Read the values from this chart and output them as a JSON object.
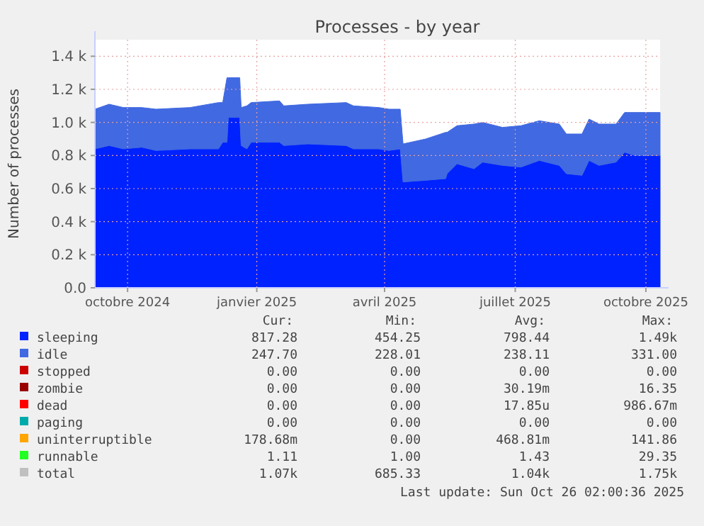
{
  "chart_data": {
    "type": "area",
    "stacked": true,
    "title": "Processes - by year",
    "ylabel": "Number of processes",
    "legend": "bottom",
    "grid": true,
    "x": [
      "2024-09-23",
      "2024-10-03",
      "2024-10-13",
      "2024-10-26",
      "2024-11-05",
      "2024-11-29",
      "2024-12-19",
      "2024-12-22",
      "2024-12-25",
      "2024-12-26",
      "2025-01-03",
      "2025-01-04",
      "2025-01-08",
      "2025-01-11",
      "2025-01-31",
      "2025-02-03",
      "2025-02-20",
      "2025-03-19",
      "2025-03-24",
      "2025-04-11",
      "2025-04-18",
      "2025-04-26",
      "2025-04-28",
      "2025-05-14",
      "2025-05-28",
      "2025-05-29",
      "2025-06-05",
      "2025-06-17",
      "2025-06-23",
      "2025-07-07",
      "2025-07-20",
      "2025-08-02",
      "2025-08-16",
      "2025-08-21",
      "2025-09-01",
      "2025-09-06",
      "2025-09-13",
      "2025-09-25",
      "2025-10-01",
      "2025-10-08",
      "2025-10-26"
    ],
    "xlim": [
      "2024-09-23",
      "2025-10-26"
    ],
    "xticks": [
      {
        "value": "2024-10-16",
        "label": "octobre 2024"
      },
      {
        "value": "2025-01-15",
        "label": "janvier 2025"
      },
      {
        "value": "2025-04-15",
        "label": "avril 2025"
      },
      {
        "value": "2025-07-16",
        "label": "juillet 2025"
      },
      {
        "value": "2025-10-16",
        "label": "octobre 2025"
      }
    ],
    "ylim": [
      0,
      1500
    ],
    "yticks": [
      {
        "value": 0,
        "label": "0.0"
      },
      {
        "value": 200,
        "label": "0.2 k"
      },
      {
        "value": 400,
        "label": "0.4 k"
      },
      {
        "value": 600,
        "label": "0.6 k"
      },
      {
        "value": 800,
        "label": "0.8 k"
      },
      {
        "value": 1000,
        "label": "1.0 k"
      },
      {
        "value": 1200,
        "label": "1.2 k"
      },
      {
        "value": 1400,
        "label": "1.4 k"
      }
    ],
    "series": [
      {
        "name": "sleeping",
        "color": "#0022ff",
        "values": [
          840,
          860,
          840,
          850,
          830,
          840,
          840,
          880,
          880,
          1030,
          1030,
          860,
          840,
          880,
          880,
          860,
          870,
          860,
          840,
          840,
          830,
          840,
          640,
          650,
          660,
          690,
          750,
          720,
          760,
          740,
          730,
          770,
          740,
          690,
          680,
          770,
          740,
          760,
          820,
          800,
          800
        ]
      },
      {
        "name": "idle",
        "color": "#4169e1",
        "values": [
          240,
          250,
          250,
          240,
          250,
          250,
          280,
          240,
          390,
          240,
          240,
          230,
          260,
          240,
          250,
          240,
          240,
          260,
          260,
          250,
          250,
          240,
          230,
          250,
          280,
          250,
          230,
          270,
          240,
          230,
          250,
          240,
          250,
          240,
          250,
          250,
          250,
          230,
          240,
          260,
          260
        ]
      },
      {
        "name": "stopped",
        "color": "#cc0000",
        "values": [
          null,
          null,
          null,
          null,
          null,
          null,
          null,
          null,
          null,
          null,
          null,
          null,
          null,
          null,
          null,
          null,
          null,
          null,
          null,
          null,
          null,
          null,
          null,
          null,
          null,
          null,
          null,
          null,
          null,
          null,
          null,
          null,
          null,
          null,
          null,
          null,
          null,
          null,
          null,
          null,
          null
        ]
      },
      {
        "name": "zombie",
        "color": "#990000",
        "values": [
          null,
          null,
          null,
          null,
          null,
          null,
          null,
          null,
          null,
          null,
          null,
          null,
          null,
          null,
          null,
          null,
          null,
          null,
          null,
          null,
          null,
          null,
          null,
          null,
          null,
          null,
          null,
          null,
          null,
          null,
          null,
          null,
          null,
          null,
          null,
          null,
          null,
          null,
          null,
          null,
          null
        ]
      },
      {
        "name": "dead",
        "color": "#ff0000",
        "values": [
          null,
          null,
          null,
          null,
          null,
          null,
          null,
          null,
          null,
          null,
          null,
          null,
          null,
          null,
          null,
          null,
          null,
          null,
          null,
          null,
          null,
          null,
          null,
          null,
          null,
          null,
          null,
          null,
          null,
          null,
          null,
          null,
          null,
          null,
          null,
          null,
          null,
          null,
          null,
          null,
          null
        ]
      },
      {
        "name": "paging",
        "color": "#00aaaa",
        "values": [
          null,
          null,
          null,
          null,
          null,
          null,
          null,
          null,
          null,
          null,
          null,
          null,
          null,
          null,
          null,
          null,
          null,
          null,
          null,
          null,
          null,
          null,
          null,
          null,
          null,
          null,
          null,
          null,
          null,
          null,
          null,
          null,
          null,
          null,
          null,
          null,
          null,
          null,
          null,
          null,
          null
        ]
      },
      {
        "name": "uninterruptible",
        "color": "#ffa500",
        "values": [
          null,
          null,
          null,
          null,
          null,
          null,
          null,
          null,
          null,
          null,
          null,
          null,
          null,
          null,
          null,
          null,
          null,
          null,
          null,
          null,
          null,
          null,
          null,
          null,
          null,
          null,
          null,
          null,
          null,
          null,
          null,
          null,
          null,
          null,
          null,
          null,
          null,
          null,
          null,
          null,
          null
        ]
      },
      {
        "name": "runnable",
        "color": "#22ff22",
        "values": [
          null,
          null,
          null,
          null,
          null,
          null,
          null,
          null,
          null,
          null,
          null,
          null,
          null,
          null,
          null,
          null,
          null,
          null,
          null,
          null,
          null,
          null,
          null,
          null,
          null,
          null,
          null,
          null,
          null,
          null,
          null,
          null,
          null,
          null,
          null,
          null,
          null,
          null,
          null,
          null,
          null
        ]
      },
      {
        "name": "total",
        "color": "#c0c0c0",
        "values": [
          null,
          null,
          null,
          null,
          null,
          null,
          null,
          null,
          null,
          null,
          null,
          null,
          null,
          null,
          null,
          null,
          null,
          null,
          null,
          null,
          null,
          null,
          null,
          null,
          null,
          null,
          null,
          null,
          null,
          null,
          null,
          null,
          null,
          null,
          null,
          null,
          null,
          null,
          null,
          null,
          null
        ]
      }
    ],
    "annotations": [
      "Cur:",
      "Min:",
      "Avg:",
      "Max:",
      "817.28",
      "454.25",
      "798.44",
      "1.49k",
      "247.70",
      "228.01",
      "238.11",
      "331.00",
      "0.00",
      "0.00",
      "0.00",
      "0.00",
      "0.00",
      "0.00",
      "30.19m",
      "16.35",
      "0.00",
      "0.00",
      "17.85u",
      "986.67m",
      "0.00",
      "0.00",
      "0.00",
      "0.00",
      "178.68m",
      "0.00",
      "468.81m",
      "141.86",
      "1.11",
      "1.00",
      "1.43",
      "29.35",
      "1.07k",
      "685.33",
      "1.04k",
      "1.75k",
      "Last update: Sun Oct 26 02:00:36 2025"
    ]
  }
}
